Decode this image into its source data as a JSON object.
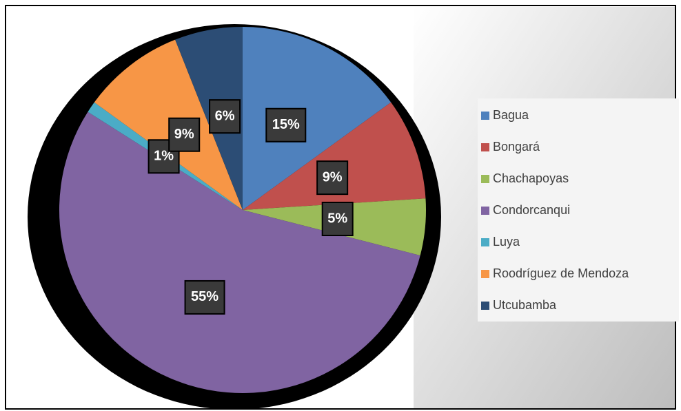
{
  "chart_data": {
    "type": "pie",
    "categories": [
      "Bagua",
      "Bongará",
      "Chachapoyas",
      "Condorcanqui",
      "Luya",
      "Roodríguez de Mendoza",
      "Utcubamba"
    ],
    "values": [
      15,
      9,
      5,
      55,
      1,
      9,
      6
    ],
    "value_labels": [
      "15%",
      "9%",
      "5%",
      "55%",
      "1%",
      "9%",
      "6%"
    ],
    "colors": [
      "#4f81bd",
      "#c0504d",
      "#9bbb59",
      "#8064a2",
      "#4bacc6",
      "#f79646",
      "#2c4d75"
    ],
    "legend": "right"
  }
}
